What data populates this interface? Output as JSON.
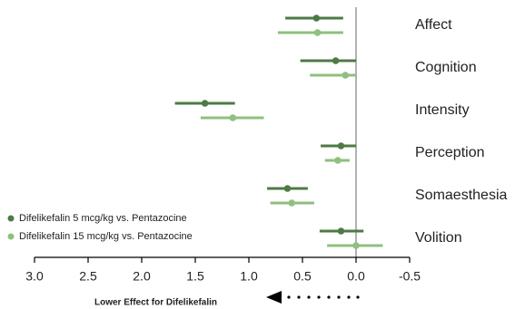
{
  "chart_data": {
    "type": "forest",
    "categories": [
      "Affect",
      "Cognition",
      "Intensity",
      "Perception",
      "Somaesthesia",
      "Volition"
    ],
    "series": [
      {
        "name": "Difelikefalin 5 mcg/kg vs. Pentazocine",
        "color": "#4e7a45",
        "values": [
          0.37,
          0.19,
          1.41,
          0.14,
          0.64,
          0.14
        ],
        "lower": [
          0.12,
          0.0,
          1.13,
          0.0,
          0.45,
          -0.07
        ],
        "upper": [
          0.66,
          0.52,
          1.69,
          0.33,
          0.83,
          0.34
        ]
      },
      {
        "name": "Difelikefalin 15 mcg/kg vs. Pentazocine",
        "color": "#8ec07f",
        "values": [
          0.36,
          0.1,
          1.15,
          0.17,
          0.6,
          0.0
        ],
        "lower": [
          0.12,
          0.0,
          0.86,
          0.06,
          0.39,
          -0.25
        ],
        "upper": [
          0.73,
          0.43,
          1.45,
          0.29,
          0.8,
          0.27
        ]
      }
    ],
    "xlim": [
      3.0,
      -0.5
    ],
    "xticks": [
      {
        "value": 3,
        "label": "3.0"
      },
      {
        "value": 2.5,
        "label": "2.5"
      },
      {
        "value": 2,
        "label": "2.0"
      },
      {
        "value": 1.5,
        "label": "1.5"
      },
      {
        "value": 1,
        "label": "1.0"
      },
      {
        "value": 0.5,
        "label": "0.5"
      },
      {
        "value": 0,
        "label": "0.0"
      },
      {
        "value": -0.5,
        "label": "-0.5"
      }
    ],
    "annotation": "Lower Effect for Difelikefalin"
  }
}
